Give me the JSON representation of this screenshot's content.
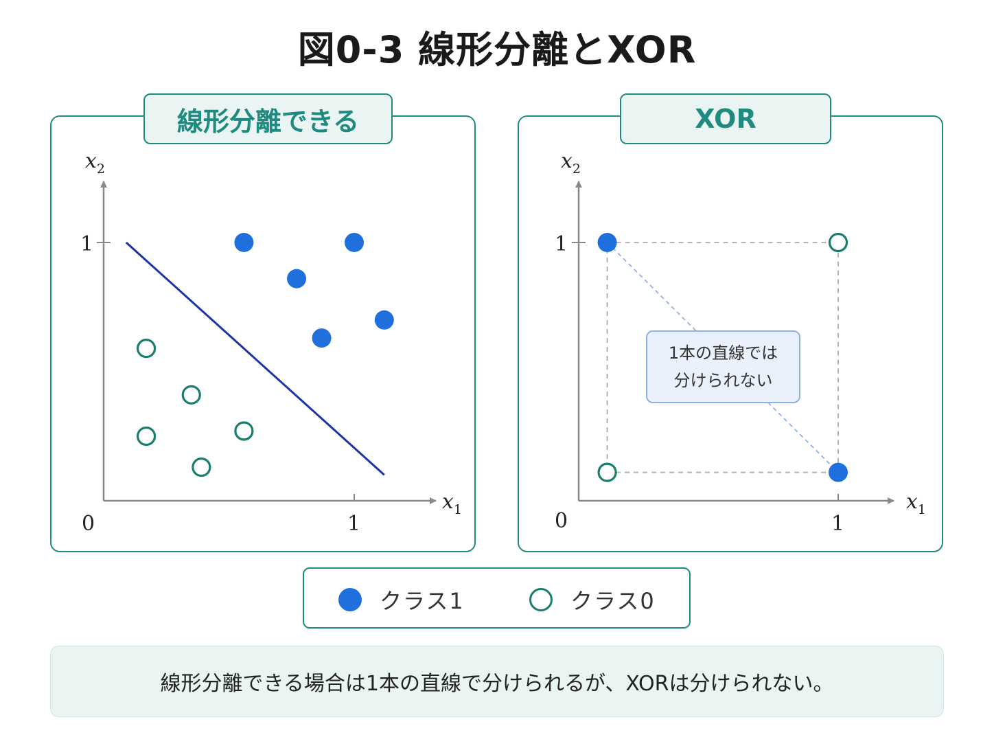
{
  "title": "図0-3 線形分離とXOR",
  "left_panel": {
    "label": "線形分離できる",
    "x_var": "x",
    "x_sub": "1",
    "y_var": "x",
    "y_sub": "2",
    "origin": "0",
    "x_tick": "1",
    "y_tick": "1"
  },
  "right_panel": {
    "label": "XOR",
    "x_var": "x",
    "x_sub": "1",
    "y_var": "x",
    "y_sub": "2",
    "origin": "0",
    "x_tick": "1",
    "y_tick": "1",
    "callout_line1": "1本の直線では",
    "callout_line2": "分けられない"
  },
  "legend": {
    "class1": "クラス1",
    "class0": "クラス0"
  },
  "caption": "線形分離できる場合は1本の直線で分けられるが、XORは分けられない。",
  "colors": {
    "class1_fill": "#1f6fdc",
    "class0_stroke": "#1a7d6d",
    "separator_line": "#1b33a8",
    "panel_border": "#1f8a80"
  },
  "chart_data": [
    {
      "type": "scatter",
      "xlim": [
        0,
        1.1
      ],
      "ylim": [
        0,
        1.1
      ],
      "series": [
        {
          "name": "クラス1",
          "points": [
            [
              0.56,
              1.0
            ],
            [
              1.0,
              1.0
            ],
            [
              0.77,
              0.86
            ],
            [
              1.12,
              0.7
            ],
            [
              0.87,
              0.63
            ]
          ]
        },
        {
          "name": "クラス0",
          "points": [
            [
              0.17,
              0.59
            ],
            [
              0.35,
              0.41
            ],
            [
              0.17,
              0.25
            ],
            [
              0.56,
              0.27
            ],
            [
              0.39,
              0.13
            ]
          ]
        }
      ],
      "separator": [
        [
          0.09,
          1.0
        ],
        [
          1.12,
          0.1
        ]
      ]
    },
    {
      "type": "scatter",
      "xlim": [
        0,
        1.1
      ],
      "ylim": [
        0,
        1.1
      ],
      "series": [
        {
          "name": "クラス1",
          "points": [
            [
              0.11,
              1.0
            ],
            [
              1.0,
              0.11
            ]
          ]
        },
        {
          "name": "クラス0",
          "points": [
            [
              1.0,
              1.0
            ],
            [
              0.11,
              0.11
            ]
          ]
        }
      ]
    }
  ]
}
